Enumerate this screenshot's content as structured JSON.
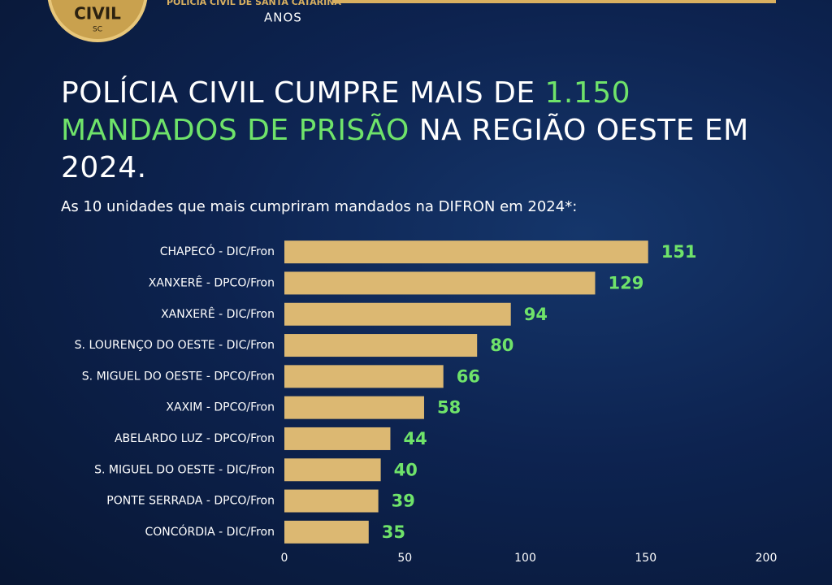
{
  "header": {
    "badge_text": "CIVIL",
    "badge_state": "SC",
    "brand": "POLÍCIA CIVIL DE SANTA CATARINA",
    "years": "ANOS"
  },
  "chart_data": {
    "type": "hbar",
    "title_start": "POLÍCIA CIVIL CUMPRE MAIS DE ",
    "title_highlight": "1.150 MANDADOS DE PRISÃO",
    "title_end": " NA REGIÃO OESTE EM 2024.",
    "subtitle": "As 10 unidades que mais cumpriram mandados na DIFRON em 2024*:",
    "categories": [
      "CHAPECÓ - DIC/Fron",
      "XANXERÊ - DPCO/Fron",
      "XANXERÊ - DIC/Fron",
      "S. LOURENÇO DO OESTE - DIC/Fron",
      "S. MIGUEL DO OESTE - DPCO/Fron",
      "XAXIM - DPCO/Fron",
      "ABELARDO LUZ - DPCO/Fron",
      "S. MIGUEL DO OESTE - DIC/Fron",
      "PONTE SERRADA - DPCO/Fron",
      "CONCÓRDIA - DIC/Fron"
    ],
    "values": [
      151,
      129,
      94,
      80,
      66,
      58,
      44,
      40,
      39,
      35
    ],
    "color": "#dcb872",
    "value_label_color": "#6fe36a",
    "xlim": [
      0,
      200
    ],
    "xticks": [
      0,
      50,
      100,
      150,
      200
    ]
  }
}
